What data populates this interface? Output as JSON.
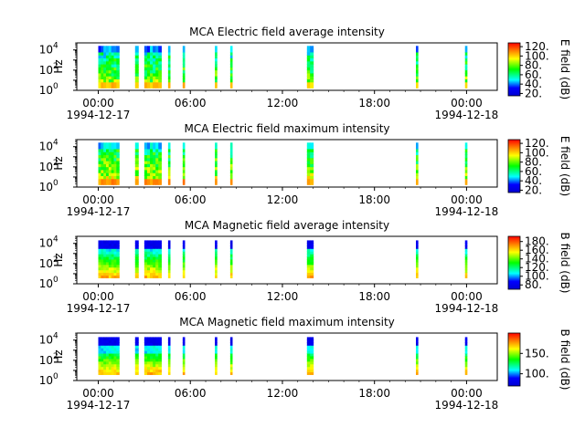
{
  "chart_data": [
    {
      "type": "heatmap",
      "title": "MCA  Electric field average intensity",
      "ylabel": "Hz",
      "yticks": [
        "10^0",
        "10^2",
        "10^4"
      ],
      "xticks": [
        "00:00",
        "06:00",
        "12:00",
        "18:00",
        "00:00"
      ],
      "xdates": [
        "1994-12-17",
        "",
        "",
        "",
        "1994-12-18"
      ],
      "colorbar": {
        "label": "E field (dB)",
        "ticks": [
          "20.",
          "40.",
          "60.",
          "80.",
          "100.",
          "120."
        ],
        "range": [
          15,
          128
        ]
      },
      "segments": [
        {
          "start": 0.0,
          "end": 1.35
        },
        {
          "start": 2.4,
          "end": 2.6
        },
        {
          "start": 3.0,
          "end": 4.1
        },
        {
          "start": 4.55,
          "end": 4.65
        },
        {
          "start": 5.5,
          "end": 5.6
        },
        {
          "start": 7.6,
          "end": 7.7
        },
        {
          "start": 8.6,
          "end": 8.7
        },
        {
          "start": 13.6,
          "end": 14.0
        },
        {
          "start": 20.7,
          "end": 20.8
        },
        {
          "start": 23.9,
          "end": 24.0
        }
      ]
    },
    {
      "type": "heatmap",
      "title": "MCA  Electric field maximum intensity",
      "ylabel": "Hz",
      "yticks": [
        "10^0",
        "10^2",
        "10^4"
      ],
      "xticks": [
        "00:00",
        "06:00",
        "12:00",
        "18:00",
        "00:00"
      ],
      "xdates": [
        "1994-12-17",
        "",
        "",
        "",
        "1994-12-18"
      ],
      "colorbar": {
        "label": "E field (dB)",
        "ticks": [
          "20.",
          "40.",
          "60.",
          "80.",
          "100.",
          "120."
        ],
        "range": [
          15,
          128
        ]
      },
      "segments": [
        {
          "start": 0.0,
          "end": 1.35
        },
        {
          "start": 2.4,
          "end": 2.6
        },
        {
          "start": 3.0,
          "end": 4.1
        },
        {
          "start": 4.55,
          "end": 4.65
        },
        {
          "start": 5.5,
          "end": 5.6
        },
        {
          "start": 7.6,
          "end": 7.7
        },
        {
          "start": 8.6,
          "end": 8.7
        },
        {
          "start": 13.6,
          "end": 14.0
        },
        {
          "start": 20.7,
          "end": 20.8
        },
        {
          "start": 23.9,
          "end": 24.0
        }
      ]
    },
    {
      "type": "heatmap",
      "title": "MCA  Magnetic field average intensity",
      "ylabel": "Hz",
      "yticks": [
        "10^0",
        "10^2",
        "10^4"
      ],
      "xticks": [
        "00:00",
        "06:00",
        "12:00",
        "18:00",
        "00:00"
      ],
      "xdates": [
        "1994-12-17",
        "",
        "",
        "",
        "1994-12-18"
      ],
      "colorbar": {
        "label": "B field (dB)",
        "ticks": [
          "80.",
          "100.",
          "120.",
          "140.",
          "160.",
          "180."
        ],
        "range": [
          70,
          192
        ]
      },
      "segments": [
        {
          "start": 0.0,
          "end": 1.35
        },
        {
          "start": 2.4,
          "end": 2.6
        },
        {
          "start": 3.0,
          "end": 4.1
        },
        {
          "start": 4.55,
          "end": 4.65
        },
        {
          "start": 5.5,
          "end": 5.6
        },
        {
          "start": 7.6,
          "end": 7.7
        },
        {
          "start": 8.6,
          "end": 8.7
        },
        {
          "start": 13.6,
          "end": 14.0
        },
        {
          "start": 20.7,
          "end": 20.8
        },
        {
          "start": 23.9,
          "end": 24.0
        }
      ]
    },
    {
      "type": "heatmap",
      "title": "MCA  Magnetic field maximum intensity",
      "ylabel": "Hz",
      "yticks": [
        "10^0",
        "10^2",
        "10^4"
      ],
      "xticks": [
        "00:00",
        "06:00",
        "12:00",
        "18:00",
        "00:00"
      ],
      "xdates": [
        "1994-12-17",
        "",
        "",
        "",
        "1994-12-18"
      ],
      "colorbar": {
        "label": "B field (dB)",
        "ticks": [
          "100.",
          "150."
        ],
        "range": [
          70,
          200
        ]
      },
      "segments": [
        {
          "start": 0.0,
          "end": 1.35
        },
        {
          "start": 2.4,
          "end": 2.6
        },
        {
          "start": 3.0,
          "end": 4.1
        },
        {
          "start": 4.55,
          "end": 4.65
        },
        {
          "start": 5.5,
          "end": 5.6
        },
        {
          "start": 7.6,
          "end": 7.7
        },
        {
          "start": 8.6,
          "end": 8.7
        },
        {
          "start": 13.6,
          "end": 14.0
        },
        {
          "start": 20.7,
          "end": 20.8
        },
        {
          "start": 23.9,
          "end": 24.0
        }
      ]
    }
  ]
}
